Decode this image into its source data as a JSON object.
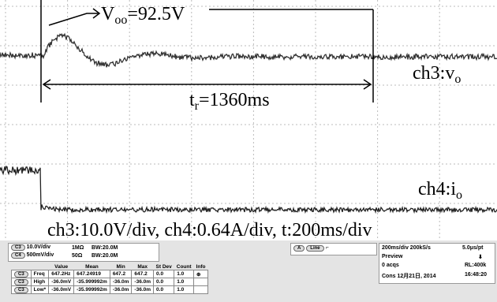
{
  "annotations": {
    "peak": {
      "main": "V",
      "sub": "oo",
      "rest": "=92.5V"
    },
    "time": {
      "main": "t",
      "sub": "r",
      "rest": "=1360ms"
    },
    "ch3": {
      "main": "ch3:v",
      "sub": "o"
    },
    "ch4": {
      "main": "ch4:i",
      "sub": "o"
    },
    "scale": "ch3:10.0V/div, ch4:0.64A/div, t:200ms/div"
  },
  "channels": [
    {
      "badge": "C3",
      "scale": "10.0V/div",
      "impedance": "1MΩ",
      "bandwidth": "BW:20.0M"
    },
    {
      "badge": "C4",
      "scale": "500mV/div",
      "impedance": "50Ω",
      "bandwidth": "BW:20.0M"
    }
  ],
  "trigger": {
    "badge": "A",
    "source": "Line"
  },
  "acquisition": {
    "timebase": "200ms/div 200kS/s",
    "resolution": "5.0μs/pt",
    "mode": "Preview",
    "acqs": "0 acqs",
    "length": "RL:400k",
    "date": "Cons 12月21日, 2014",
    "time": "16:48:20"
  },
  "table": {
    "header": [
      "Value",
      "Mean",
      "Min",
      "Max",
      "St Dev",
      "Count",
      "Info"
    ],
    "rows": [
      [
        "C3",
        "Freq",
        "647.2Hz",
        "647.24919",
        "647.2",
        "647.2",
        "0.0",
        "1.0"
      ],
      [
        "C3",
        "High",
        "-36.0mV",
        "-35.999992m",
        "-36.0m",
        "-36.0m",
        "0.0",
        "1.0"
      ],
      [
        "C3",
        "Low*",
        "-36.0mV",
        "-35.999992m",
        "-36.0m",
        "-36.0m",
        "0.0",
        "1.0"
      ]
    ]
  }
}
